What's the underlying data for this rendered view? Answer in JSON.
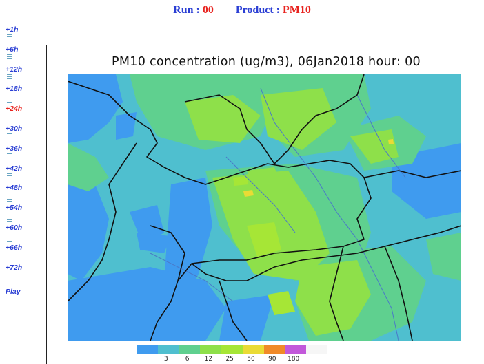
{
  "header": {
    "run_label": "Run :",
    "run_value": "00",
    "product_label": "Product :",
    "product_value": "PM10"
  },
  "timeline": {
    "steps": [
      "+1h",
      "+6h",
      "+12h",
      "+18h",
      "+24h",
      "+30h",
      "+36h",
      "+42h",
      "+48h",
      "+54h",
      "+60h",
      "+66h",
      "+72h"
    ],
    "active_step": "+24h",
    "play_label": "Play"
  },
  "map": {
    "title": "PM10 concentration (ug/m3), 06Jan2018 hour: 00"
  },
  "legend": {
    "colors": [
      "#3f9bef",
      "#4fbfcf",
      "#5fd08f",
      "#8ee04a",
      "#a6e636",
      "#eadb35",
      "#f08a28",
      "#c258da",
      "#f6f6f6"
    ],
    "labels": [
      "3",
      "6",
      "12",
      "25",
      "50",
      "90",
      "180"
    ]
  },
  "colors": {
    "link_blue": "#2b3fd4",
    "highlight_red": "#e8231f"
  }
}
